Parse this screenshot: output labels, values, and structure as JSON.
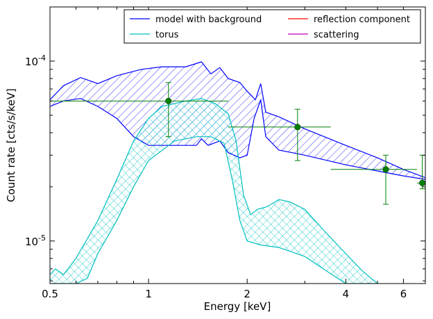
{
  "chart_data": {
    "type": "line",
    "title": "",
    "xlabel": "Energy [keV]",
    "ylabel": "Count rate [cts/s/keV]",
    "x_scale": "log",
    "y_scale": "log",
    "xlim": [
      0.5,
      7.0
    ],
    "ylim": [
      5.8e-06,
      0.0002
    ],
    "x_ticks": [
      {
        "value": 0.5,
        "label": "0.5"
      },
      {
        "value": 1,
        "label": "1"
      },
      {
        "value": 2,
        "label": "2"
      },
      {
        "value": 4,
        "label": "4"
      },
      {
        "value": 6,
        "label": "6"
      }
    ],
    "y_ticks": [
      {
        "value": 0.0001,
        "label_base": "10",
        "label_exp": "-4"
      },
      {
        "value": 1e-05,
        "label_base": "10",
        "label_exp": "-5"
      }
    ],
    "grid": false,
    "legend_position": "top-right",
    "legend": [
      {
        "name": "model with background",
        "color": "#0000ff"
      },
      {
        "name": "torus",
        "color": "#00bfbf"
      },
      {
        "name": "reflection component",
        "color": "#ff0000"
      },
      {
        "name": "scattering",
        "color": "#bf00bf"
      }
    ],
    "bands": [
      {
        "series": "model with background",
        "color": "#0000ff",
        "hatch": "diagonal",
        "upper": [
          [
            0.5,
            6.1e-05
          ],
          [
            0.55,
            7.3e-05
          ],
          [
            0.62,
            8.1e-05
          ],
          [
            0.7,
            7.5e-05
          ],
          [
            0.8,
            8.3e-05
          ],
          [
            0.95,
            9e-05
          ],
          [
            1.1,
            9.3e-05
          ],
          [
            1.3,
            9.3e-05
          ],
          [
            1.45,
            9.9e-05
          ],
          [
            1.55,
            8.5e-05
          ],
          [
            1.65,
            9.2e-05
          ],
          [
            1.75,
            8e-05
          ],
          [
            1.9,
            7.6e-05
          ],
          [
            2.0,
            6.8e-05
          ],
          [
            2.12,
            6.1e-05
          ],
          [
            2.2,
            7.5e-05
          ],
          [
            2.28,
            5.2e-05
          ],
          [
            2.5,
            4.9e-05
          ],
          [
            3.0,
            4.2e-05
          ],
          [
            4.0,
            3.4e-05
          ],
          [
            5.0,
            2.9e-05
          ],
          [
            6.0,
            2.5e-05
          ],
          [
            7.0,
            2.25e-05
          ]
        ],
        "lower": [
          [
            0.5,
            5.6e-05
          ],
          [
            0.55,
            6e-05
          ],
          [
            0.62,
            6.2e-05
          ],
          [
            0.7,
            5.6e-05
          ],
          [
            0.8,
            4.8e-05
          ],
          [
            0.9,
            3.8e-05
          ],
          [
            1.0,
            3.4e-05
          ],
          [
            1.2,
            3.4e-05
          ],
          [
            1.4,
            3.4e-05
          ],
          [
            1.45,
            3.7e-05
          ],
          [
            1.52,
            3.4e-05
          ],
          [
            1.65,
            3.6e-05
          ],
          [
            1.75,
            3.1e-05
          ],
          [
            1.9,
            2.9e-05
          ],
          [
            2.0,
            3e-05
          ],
          [
            2.1,
            4.8e-05
          ],
          [
            2.2,
            6.1e-05
          ],
          [
            2.28,
            3.8e-05
          ],
          [
            2.5,
            3.2e-05
          ],
          [
            3.0,
            3e-05
          ],
          [
            4.0,
            2.65e-05
          ],
          [
            5.0,
            2.45e-05
          ],
          [
            6.0,
            2.3e-05
          ],
          [
            7.0,
            2.2e-05
          ]
        ]
      },
      {
        "series": "torus",
        "color": "#00bfbf",
        "hatch": "cross",
        "upper": [
          [
            0.5,
            6.5e-06
          ],
          [
            0.52,
            7e-06
          ],
          [
            0.55,
            6.5e-06
          ],
          [
            0.6,
            8e-06
          ],
          [
            0.7,
            1.3e-05
          ],
          [
            0.8,
            2.2e-05
          ],
          [
            0.9,
            3.6e-05
          ],
          [
            1.0,
            4.8e-05
          ],
          [
            1.1,
            5.6e-05
          ],
          [
            1.3,
            6e-05
          ],
          [
            1.45,
            6.2e-05
          ],
          [
            1.6,
            5.8e-05
          ],
          [
            1.75,
            5.1e-05
          ],
          [
            1.85,
            3.6e-05
          ],
          [
            1.95,
            1.8e-05
          ],
          [
            2.05,
            1.4e-05
          ],
          [
            2.15,
            1.5e-05
          ],
          [
            2.3,
            1.55e-05
          ],
          [
            2.5,
            1.7e-05
          ],
          [
            2.7,
            1.65e-05
          ],
          [
            3.0,
            1.5e-05
          ],
          [
            3.5,
            1.1e-05
          ],
          [
            4.0,
            8.5e-06
          ],
          [
            4.5,
            6.8e-06
          ],
          [
            5.0,
            5.8e-06
          ]
        ],
        "lower": [
          [
            0.5,
            5.8e-06
          ],
          [
            0.6,
            5.8e-06
          ],
          [
            0.65,
            6.2e-06
          ],
          [
            0.7,
            8.5e-06
          ],
          [
            0.8,
            1.3e-05
          ],
          [
            0.9,
            2e-05
          ],
          [
            1.0,
            2.8e-05
          ],
          [
            1.2,
            3.6e-05
          ],
          [
            1.4,
            3.8e-05
          ],
          [
            1.55,
            3.8e-05
          ],
          [
            1.7,
            3.5e-05
          ],
          [
            1.8,
            2.2e-05
          ],
          [
            1.9,
            1.3e-05
          ],
          [
            2.0,
            1e-05
          ],
          [
            2.2,
            9.5e-06
          ],
          [
            2.5,
            9.2e-06
          ],
          [
            3.0,
            8.2e-06
          ],
          [
            3.5,
            6.8e-06
          ],
          [
            4.0,
            5.8e-06
          ],
          [
            5.0,
            5.8e-06
          ]
        ]
      }
    ],
    "data_points": {
      "color": "#008000",
      "points": [
        {
          "x": 1.15,
          "y": 6e-05,
          "xlo": 0.5,
          "xhi": 1.75,
          "ylo": 3.8e-05,
          "yhi": 7.6e-05
        },
        {
          "x": 2.85,
          "y": 4.3e-05,
          "xlo": 1.75,
          "xhi": 3.6,
          "ylo": 2.8e-05,
          "yhi": 5.4e-05
        },
        {
          "x": 5.3,
          "y": 2.5e-05,
          "xlo": 3.6,
          "xhi": 6.6,
          "ylo": 1.6e-05,
          "yhi": 3e-05
        },
        {
          "x": 6.85,
          "y": 2.1e-05,
          "xlo": 6.6,
          "xhi": 7.0,
          "ylo": 1.95e-05,
          "yhi": 3e-05
        }
      ]
    }
  }
}
